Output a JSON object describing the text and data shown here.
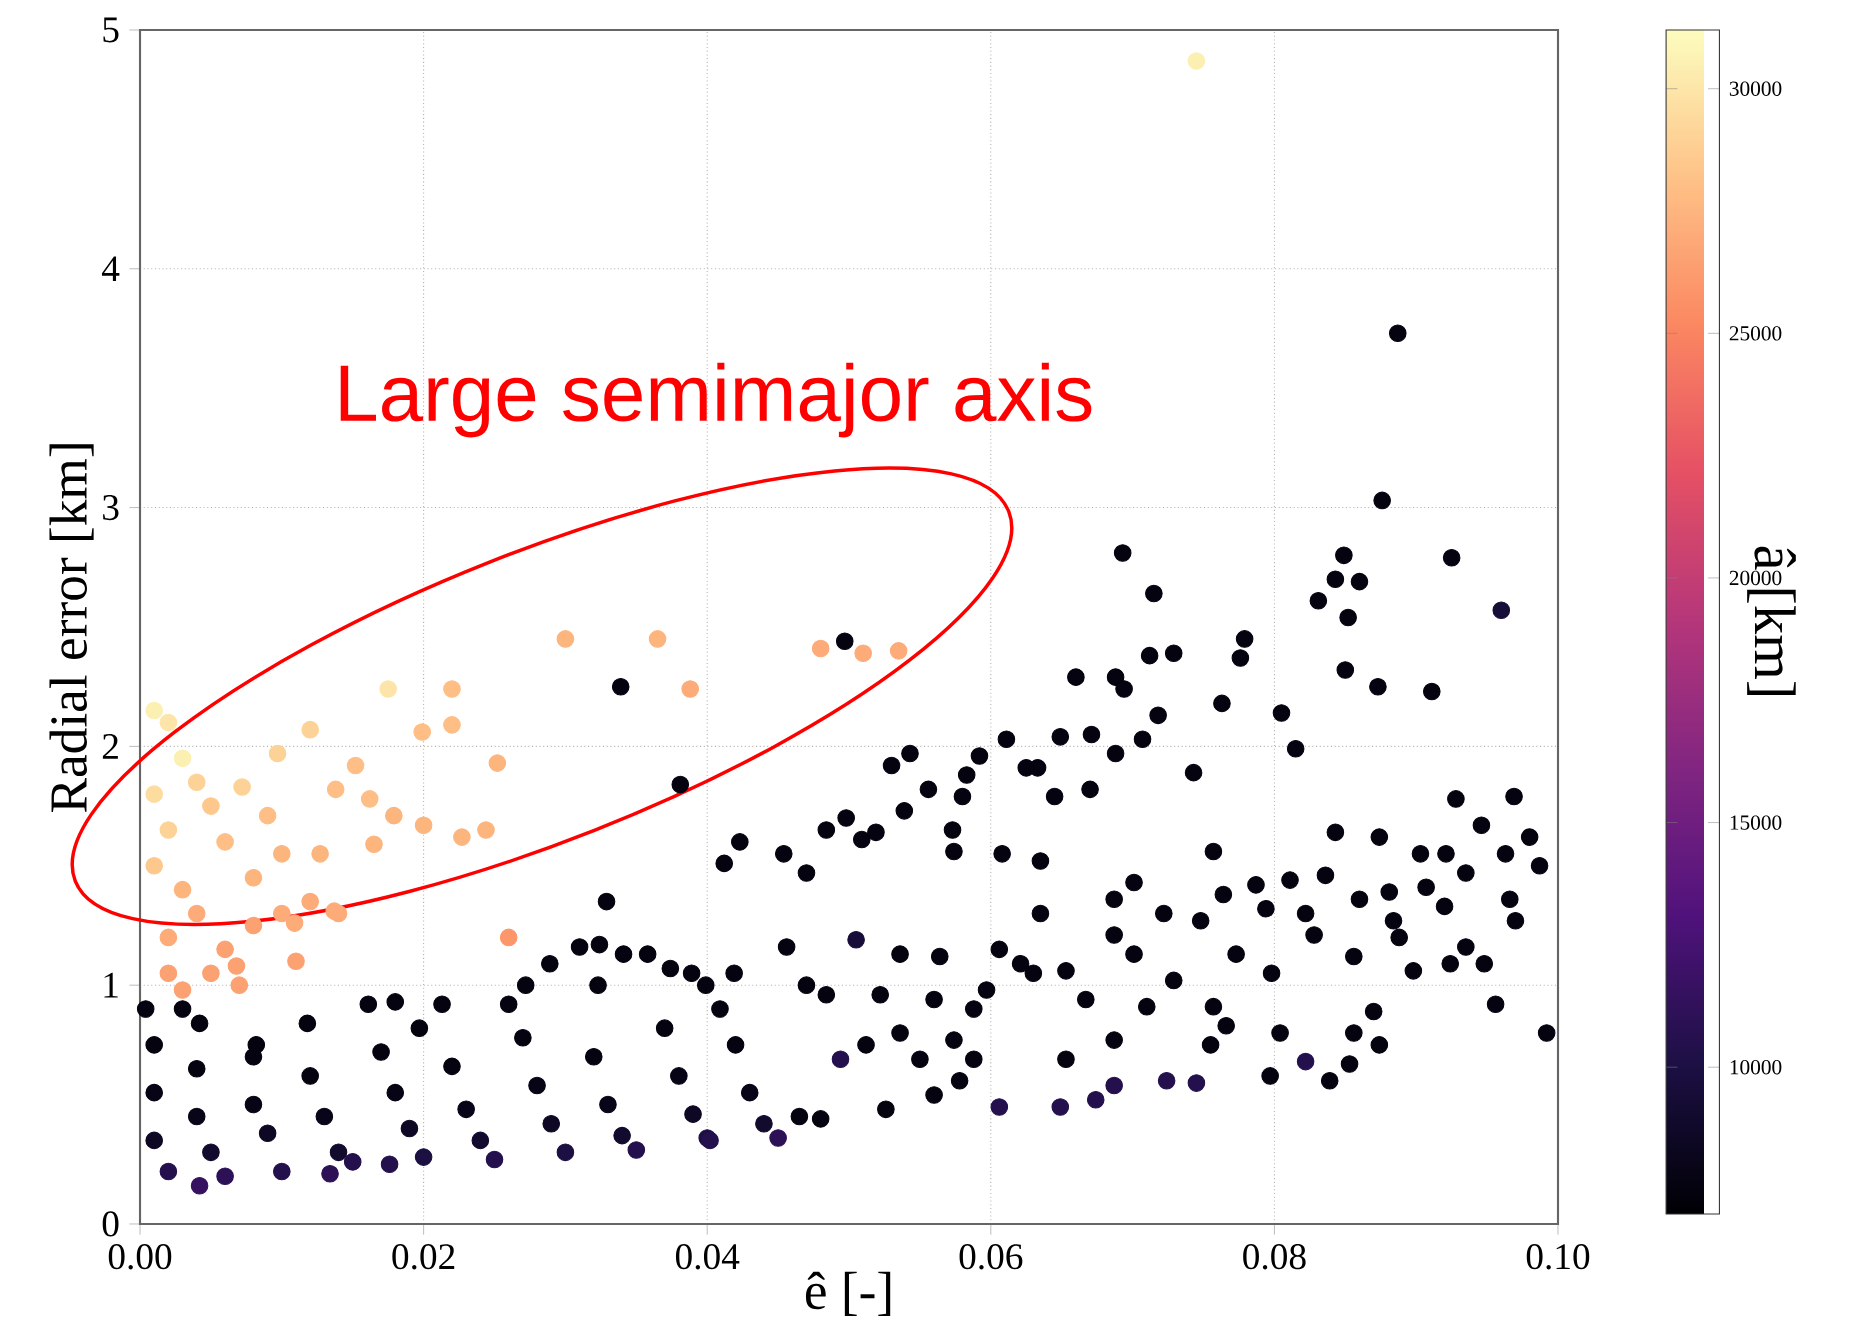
{
  "chart_data": {
    "type": "scatter",
    "xlabel": "ê [-]",
    "ylabel": "Radial error [km]",
    "clabel": "â [km]",
    "annotations": [
      "Large semimajor axis"
    ],
    "xlim": [
      0,
      0.1
    ],
    "ylim": [
      0,
      5
    ],
    "xticks": [
      {
        "value": 0,
        "label": "0.00"
      },
      {
        "value": 0.02,
        "label": "0.02"
      },
      {
        "value": 0.04,
        "label": "0.04"
      },
      {
        "value": 0.06,
        "label": "0.06"
      },
      {
        "value": 0.08,
        "label": "0.08"
      },
      {
        "value": 0.1,
        "label": "0.10"
      }
    ],
    "yticks": [
      0,
      1,
      2,
      3,
      4,
      5
    ],
    "clim": [
      7000,
      31200
    ],
    "cticks": [
      10000,
      15000,
      20000,
      25000,
      30000
    ],
    "grid": true,
    "marker": "circle",
    "x": [
      0.001,
      0.001,
      0.001,
      0.002,
      0.004,
      0.004,
      0.005,
      0.006,
      0.008,
      0.008,
      0.009,
      0.01,
      0.012,
      0.013,
      0.014,
      0.015,
      0.017,
      0.018,
      0.019,
      0.02,
      0.022,
      0.023,
      0.024,
      0.025,
      0.027,
      0.028,
      0.029,
      0.03,
      0.032,
      0.033,
      0.034,
      0.035,
      0.037,
      0.038,
      0.039,
      0.04,
      0.042,
      0.043,
      0.044,
      0.045,
      0.0042,
      0.0134,
      0.0176,
      0.0402,
      0.0004,
      0.003,
      0.0042,
      0.0082,
      0.0118,
      0.0197,
      0.0161,
      0.018,
      0.0213,
      0.026,
      0.0409,
      0.0419,
      0.047,
      0.0456,
      0.0399,
      0.0389,
      0.0374,
      0.0358,
      0.0323,
      0.0272,
      0.0289,
      0.0341,
      0.0324,
      0.031,
      0.0329,
      0.047,
      0.0454,
      0.0412,
      0.0423,
      0.0484,
      0.0498,
      0.0509,
      0.0519,
      0.0539,
      0.0556,
      0.058,
      0.0573,
      0.0574,
      0.0608,
      0.0635,
      0.0645,
      0.0583,
      0.053,
      0.0543,
      0.0592,
      0.0611,
      0.0625,
      0.0633,
      0.0649,
      0.0671,
      0.0688,
      0.0707,
      0.0743,
      0.067,
      0.0718,
      0.0763,
      0.0805,
      0.0815,
      0.066,
      0.0688,
      0.0694,
      0.0712,
      0.0729,
      0.0776,
      0.0779,
      0.085,
      0.0873,
      0.0911,
      0.0852,
      0.096,
      0.0831,
      0.0843,
      0.086,
      0.0715,
      0.0693,
      0.0849,
      0.0925,
      0.0876,
      0.0887,
      0.0928,
      0.0969,
      0.0843,
      0.0946,
      0.098,
      0.0987,
      0.0963,
      0.0874,
      0.0903,
      0.0921,
      0.0935,
      0.0757,
      0.0811,
      0.0836,
      0.0881,
      0.0907,
      0.0966,
      0.097,
      0.0701,
      0.0687,
      0.0787,
      0.0764,
      0.0794,
      0.0822,
      0.086,
      0.0884,
      0.092,
      0.0935,
      0.0948,
      0.0924,
      0.0956,
      0.0992,
      0.0888,
      0.0898,
      0.087,
      0.0874,
      0.0853,
      0.0839,
      0.0856,
      0.0822,
      0.0828,
      0.0856,
      0.0748,
      0.0722,
      0.0635,
      0.0687,
      0.0701,
      0.0773,
      0.0798,
      0.0729,
      0.0653,
      0.063,
      0.0606,
      0.0621,
      0.0597,
      0.0588,
      0.0667,
      0.071,
      0.0757,
      0.0804,
      0.0766,
      0.0755,
      0.0797,
      0.0745,
      0.0724,
      0.0687,
      0.0674,
      0.0649,
      0.0606,
      0.0653,
      0.0687,
      0.056,
      0.0526,
      0.0494,
      0.048,
      0.0465,
      0.0505,
      0.0536,
      0.0564,
      0.056,
      0.0522,
      0.0484,
      0.0536,
      0.0574,
      0.055,
      0.0512,
      0.0588,
      0.0578,
      0.0339,
      0.0381,
      0.0497,
      0.001,
      0.002,
      0.003,
      0.001,
      0.004,
      0.002,
      0.005,
      0.001,
      0.006,
      0.003,
      0.002,
      0.004,
      0.006,
      0.008,
      0.005,
      0.002,
      0.01,
      0.012,
      0.008,
      0.01,
      0.014,
      0.007,
      0.003,
      0.011,
      0.0175,
      0.022,
      0.022,
      0.0199,
      0.0252,
      0.0388,
      0.012,
      0.0097,
      0.0072,
      0.0152,
      0.0138,
      0.0162,
      0.0179,
      0.02,
      0.0227,
      0.0244,
      0.0165,
      0.009,
      0.026,
      0.0127,
      0.0137,
      0.0109,
      0.0068,
      0.03,
      0.0365,
      0.048,
      0.051,
      0.0535,
      0.0745
    ],
    "values": [
      0.75,
      0.55,
      0.35,
      0.22,
      0.65,
      0.45,
      0.3,
      0.2,
      0.7,
      0.5,
      0.38,
      0.22,
      0.62,
      0.45,
      0.3,
      0.26,
      0.72,
      0.55,
      0.4,
      0.28,
      0.66,
      0.48,
      0.35,
      0.27,
      0.78,
      0.58,
      0.42,
      0.3,
      0.7,
      0.5,
      0.37,
      0.31,
      0.82,
      0.62,
      0.46,
      0.36,
      0.75,
      0.55,
      0.42,
      0.36,
      0.16,
      0.21,
      0.25,
      0.35,
      0.9,
      0.9,
      0.84,
      0.75,
      0.84,
      0.82,
      0.92,
      0.93,
      0.92,
      0.92,
      0.9,
      1.05,
      1.0,
      1.16,
      1.0,
      1.05,
      1.07,
      1.13,
      1.0,
      1.0,
      1.09,
      1.13,
      1.17,
      1.16,
      1.35,
      1.47,
      1.55,
      1.51,
      1.6,
      1.65,
      1.7,
      1.61,
      1.64,
      1.73,
      1.82,
      1.79,
      1.65,
      1.56,
      1.55,
      1.52,
      1.79,
      1.88,
      1.92,
      1.97,
      1.96,
      2.03,
      1.91,
      1.91,
      2.04,
      2.05,
      1.97,
      2.03,
      1.89,
      1.82,
      2.13,
      2.18,
      2.14,
      1.99,
      2.29,
      2.29,
      2.24,
      2.38,
      2.39,
      2.37,
      2.45,
      2.32,
      2.25,
      2.23,
      2.54,
      2.57,
      2.61,
      2.7,
      2.69,
      2.64,
      2.81,
      2.8,
      2.79,
      3.03,
      3.73,
      1.78,
      1.79,
      1.64,
      1.67,
      1.62,
      1.5,
      1.55,
      1.62,
      1.55,
      1.55,
      1.47,
      1.56,
      1.44,
      1.46,
      1.39,
      1.41,
      1.36,
      1.27,
      1.43,
      1.36,
      1.42,
      1.38,
      1.32,
      1.3,
      1.36,
      1.27,
      1.33,
      1.16,
      1.09,
      1.09,
      0.92,
      0.8,
      1.2,
      1.06,
      0.89,
      0.75,
      0.67,
      0.6,
      0.8,
      0.68,
      1.21,
      1.12,
      1.27,
      1.3,
      1.3,
      1.21,
      1.13,
      1.13,
      1.05,
      1.02,
      1.06,
      1.05,
      1.15,
      1.09,
      0.98,
      0.9,
      0.94,
      0.91,
      0.91,
      0.8,
      0.83,
      0.75,
      0.62,
      0.59,
      0.6,
      0.58,
      0.52,
      0.49,
      0.49,
      0.69,
      0.77,
      0.54,
      0.48,
      0.69,
      0.44,
      0.45,
      1.19,
      1.13,
      1.12,
      0.94,
      0.96,
      0.96,
      0.8,
      0.77,
      0.69,
      0.75,
      0.69,
      0.6,
      2.25,
      1.84,
      2.44,
      2.15,
      2.1,
      1.95,
      1.8,
      1.85,
      1.65,
      1.75,
      1.5,
      1.6,
      1.4,
      1.2,
      1.3,
      1.15,
      1.25,
      1.05,
      1.05,
      1.3,
      1.35,
      1.45,
      1.55,
      1.3,
      1.0,
      0.98,
      1.1,
      2.24,
      2.24,
      2.09,
      2.06,
      1.93,
      2.24,
      2.07,
      1.97,
      1.83,
      1.92,
      1.82,
      1.78,
      1.71,
      1.67,
      1.62,
      1.65,
      1.59,
      1.71,
      1.2,
      1.55,
      1.31,
      1.26,
      1.08,
      2.45,
      2.45,
      2.41,
      2.39,
      2.4,
      4.87
    ],
    "cvalues": [
      7500,
      7800,
      8500,
      10500,
      7500,
      8000,
      9000,
      11000,
      7500,
      7800,
      8500,
      10500,
      7500,
      8000,
      9000,
      10500,
      7500,
      7800,
      8500,
      10000,
      7500,
      8000,
      9000,
      10500,
      7500,
      7800,
      8500,
      10000,
      7500,
      8000,
      9000,
      10500,
      7500,
      7800,
      8500,
      10000,
      7500,
      8000,
      9000,
      11000,
      11500,
      11000,
      10500,
      10500,
      7500,
      7500,
      7500,
      7500,
      7500,
      7500,
      7500,
      7500,
      7500,
      7500,
      7500,
      7500,
      7500,
      7500,
      7500,
      7500,
      7500,
      7500,
      7500,
      7500,
      7500,
      7500,
      7500,
      7500,
      7500,
      7500,
      7500,
      7500,
      7500,
      7500,
      7500,
      7500,
      7500,
      7500,
      7500,
      7500,
      7500,
      7500,
      7500,
      7500,
      7500,
      7500,
      7500,
      7500,
      7500,
      7500,
      7500,
      7500,
      7500,
      7500,
      7500,
      7500,
      7500,
      7500,
      7500,
      7500,
      7500,
      7500,
      7500,
      7500,
      7500,
      7500,
      7500,
      7500,
      7500,
      7500,
      7500,
      7500,
      7500,
      9500,
      7500,
      7500,
      7500,
      7500,
      7500,
      7500,
      7500,
      7500,
      7500,
      7500,
      7500,
      7500,
      7500,
      7500,
      7500,
      7500,
      7500,
      7500,
      7500,
      7500,
      7500,
      7500,
      7500,
      7500,
      7500,
      7500,
      7500,
      7500,
      7500,
      7500,
      7500,
      7500,
      7500,
      7500,
      7500,
      7500,
      7500,
      7500,
      7500,
      7500,
      7500,
      7500,
      7500,
      7500,
      7500,
      7500,
      7500,
      7500,
      10500,
      7500,
      7500,
      7500,
      7500,
      7500,
      7500,
      7500,
      7500,
      7500,
      7500,
      7500,
      7500,
      7500,
      7500,
      7500,
      7500,
      7500,
      7500,
      7500,
      7500,
      7500,
      7500,
      7500,
      10500,
      10500,
      10500,
      10500,
      10500,
      10500,
      7500,
      7500,
      7500,
      7500,
      10500,
      7500,
      7500,
      9500,
      7500,
      7500,
      7500,
      7500,
      7500,
      7500,
      7500,
      7500,
      7500,
      7500,
      7500,
      7500,
      7500,
      7500,
      30500,
      30000,
      30500,
      29500,
      29000,
      29000,
      28500,
      28500,
      28000,
      27500,
      27000,
      27000,
      26500,
      26500,
      26500,
      26500,
      27000,
      27000,
      27500,
      27500,
      27000,
      26500,
      26500,
      26500,
      30000,
      28000,
      28000,
      28000,
      27500,
      27000,
      29000,
      29000,
      29000,
      28000,
      28000,
      28000,
      27500,
      27500,
      27500,
      27500,
      27500,
      28000,
      26000,
      27500,
      27000,
      27000,
      26500,
      27500,
      27500,
      27000,
      27000,
      27000,
      30500
    ]
  }
}
